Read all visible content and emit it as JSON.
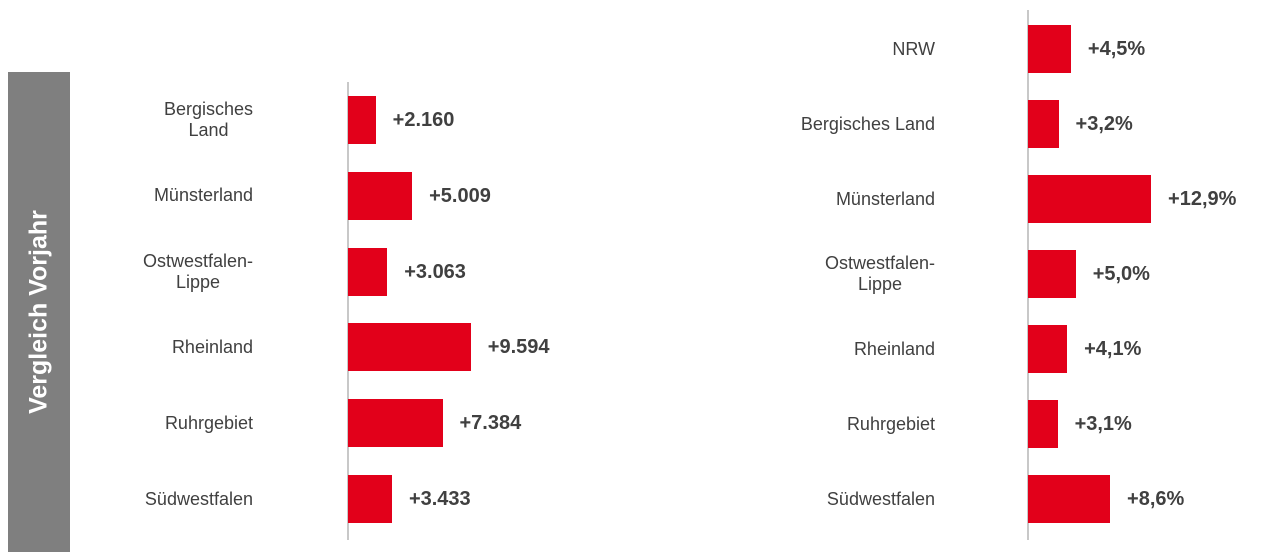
{
  "side_label": "Vergleich Vorjahr",
  "chart_data": [
    {
      "type": "bar",
      "orientation": "horizontal",
      "color": "#e2001a",
      "categories": [
        "Bergisches\nLand",
        "Münsterland",
        "Ostwestfalen-\nLippe",
        "Rheinland",
        "Ruhrgebiet",
        "Südwestfalen"
      ],
      "values": [
        2160,
        5009,
        3063,
        9594,
        7384,
        3433
      ],
      "value_labels": [
        "+2.160",
        "+5.009",
        "+3.063",
        "+9.594",
        "+7.384",
        "+3.433"
      ],
      "xlim": [
        0,
        10000
      ]
    },
    {
      "type": "bar",
      "orientation": "horizontal",
      "color": "#e2001a",
      "categories": [
        "NRW",
        "Bergisches Land",
        "Münsterland",
        "Ostwestfalen-\nLippe",
        "Rheinland",
        "Ruhrgebiet",
        "Südwestfalen"
      ],
      "values": [
        4.5,
        3.2,
        12.9,
        5.0,
        4.1,
        3.1,
        8.6
      ],
      "value_labels": [
        "+4,5%",
        "+3,2%",
        "+12,9%",
        "+5,0%",
        "+4,1%",
        "+3,1%",
        "+8,6%"
      ],
      "xlim": [
        0,
        13
      ]
    }
  ]
}
